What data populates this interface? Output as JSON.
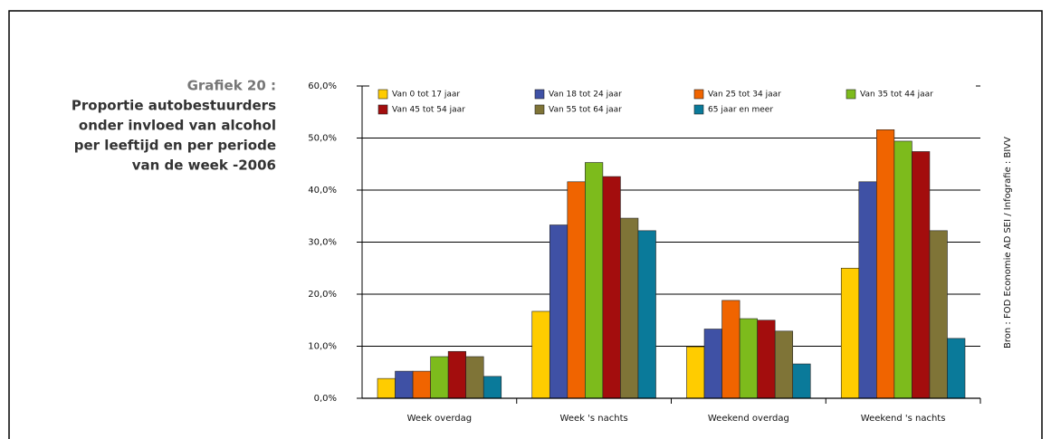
{
  "chart_data": {
    "type": "bar",
    "title": "Grafiek 20 :",
    "subtitle": [
      "Proportie autobestuurders",
      "onder invloed van alcohol",
      "per leeftijd en per periode",
      "van de week -2006"
    ],
    "source": "Bron : FOD Economie AD SEI / Infografie : BIVV",
    "categories": [
      "Week overdag",
      "Week 's nachts",
      "Weekend overdag",
      "Weekend 's nachts"
    ],
    "series": [
      {
        "name": "Van 0 tot 17 jaar",
        "color": "#ffcc00",
        "values": [
          3.8,
          16.7,
          9.9,
          25.0
        ]
      },
      {
        "name": "Van 18 tot 24 jaar",
        "color": "#3f51a5",
        "values": [
          5.2,
          33.3,
          13.3,
          41.6
        ]
      },
      {
        "name": "Van 25 tot 34 jaar",
        "color": "#f06400",
        "values": [
          5.2,
          41.6,
          18.8,
          51.6
        ]
      },
      {
        "name": "Van 35 tot 44 jaar",
        "color": "#7dbb1c",
        "values": [
          8.0,
          45.3,
          15.3,
          49.4
        ]
      },
      {
        "name": "Van 45 tot 54 jaar",
        "color": "#a30d0d",
        "values": [
          9.0,
          42.6,
          15.0,
          47.4
        ]
      },
      {
        "name": "Van 55 tot 64 jaar",
        "color": "#7f7437",
        "values": [
          8.0,
          34.6,
          12.9,
          32.2
        ]
      },
      {
        "name": "65 jaar en meer",
        "color": "#0a7a9a",
        "values": [
          4.2,
          32.2,
          6.6,
          11.5
        ]
      }
    ],
    "ylim": [
      0,
      60
    ],
    "yticks": [
      {
        "value": 0,
        "label": "0,0%"
      },
      {
        "value": 10,
        "label": "10,0%"
      },
      {
        "value": 20,
        "label": "20,0%"
      },
      {
        "value": 30,
        "label": "30,0%"
      },
      {
        "value": 40,
        "label": "40,0%"
      },
      {
        "value": 50,
        "label": "50,0%"
      },
      {
        "value": 60,
        "label": "60,0%"
      }
    ],
    "grid": true
  }
}
